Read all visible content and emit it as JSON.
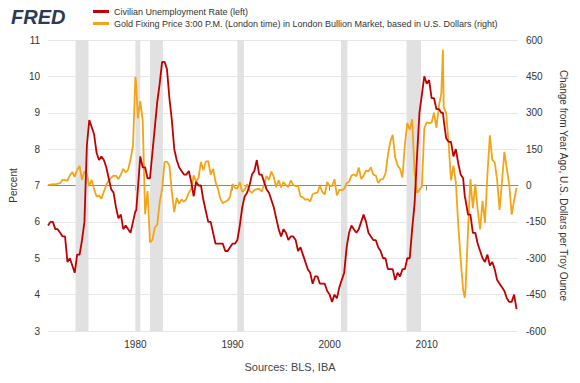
{
  "chart_data": {
    "type": "line",
    "title": "FRED",
    "source": "Sources: BLS, IBA",
    "ylabel": "Percent",
    "y2label": "Change from Year Ago, U.S. Dollars per Troy Ounce",
    "legend": "top-left",
    "grid": true,
    "xlim": [
      1971,
      2019.4
    ],
    "xticks": [
      1980,
      1990,
      2000,
      2010
    ],
    "ylim": [
      3,
      11
    ],
    "yticks": [
      3,
      4,
      5,
      6,
      7,
      8,
      9,
      10,
      11
    ],
    "y2lim": [
      -600,
      600
    ],
    "y2ticks": [
      -600,
      -450,
      -300,
      -150,
      0,
      150,
      300,
      450,
      600
    ],
    "shaded_periods": [
      [
        1973.83,
        1975.17
      ],
      [
        1980.0,
        1980.5
      ],
      [
        1981.5,
        1982.83
      ],
      [
        1990.5,
        1991.17
      ],
      [
        2001.17,
        2001.83
      ],
      [
        2007.92,
        2009.42
      ]
    ],
    "x": [
      1971,
      1971.25,
      1971.5,
      1971.75,
      1972,
      1972.25,
      1972.5,
      1972.75,
      1973,
      1973.25,
      1973.5,
      1973.75,
      1974,
      1974.25,
      1974.5,
      1974.75,
      1975,
      1975.25,
      1975.5,
      1975.75,
      1976,
      1976.25,
      1976.5,
      1976.75,
      1977,
      1977.25,
      1977.5,
      1977.75,
      1978,
      1978.25,
      1978.5,
      1978.75,
      1979,
      1979.25,
      1979.5,
      1979.75,
      1980,
      1980.08,
      1980.25,
      1980.5,
      1980.75,
      1981,
      1981.25,
      1981.5,
      1981.75,
      1982,
      1982.25,
      1982.5,
      1982.75,
      1983,
      1983.25,
      1983.5,
      1983.75,
      1984,
      1984.25,
      1984.5,
      1984.75,
      1985,
      1985.25,
      1985.5,
      1985.75,
      1986,
      1986.25,
      1986.5,
      1986.75,
      1987,
      1987.25,
      1987.5,
      1987.75,
      1988,
      1988.25,
      1988.5,
      1988.75,
      1989,
      1989.25,
      1989.5,
      1989.75,
      1990,
      1990.25,
      1990.5,
      1990.75,
      1991,
      1991.25,
      1991.5,
      1991.75,
      1992,
      1992.25,
      1992.5,
      1992.75,
      1993,
      1993.25,
      1993.5,
      1993.75,
      1994,
      1994.25,
      1994.5,
      1994.75,
      1995,
      1995.25,
      1995.5,
      1995.75,
      1996,
      1996.25,
      1996.5,
      1996.75,
      1997,
      1997.25,
      1997.5,
      1997.75,
      1998,
      1998.25,
      1998.5,
      1998.75,
      1999,
      1999.25,
      1999.5,
      1999.75,
      2000,
      2000.25,
      2000.5,
      2000.75,
      2001,
      2001.25,
      2001.5,
      2001.75,
      2002,
      2002.25,
      2002.5,
      2002.75,
      2003,
      2003.25,
      2003.5,
      2003.75,
      2004,
      2004.25,
      2004.5,
      2004.75,
      2005,
      2005.25,
      2005.5,
      2005.75,
      2006,
      2006.25,
      2006.5,
      2006.75,
      2007,
      2007.25,
      2007.5,
      2007.75,
      2008,
      2008.25,
      2008.5,
      2008.75,
      2009,
      2009.25,
      2009.5,
      2009.75,
      2010,
      2010.25,
      2010.5,
      2010.75,
      2011,
      2011.25,
      2011.5,
      2011.67,
      2011.75,
      2012,
      2012.25,
      2012.5,
      2012.75,
      2013,
      2013.25,
      2013.5,
      2013.75,
      2013.92,
      2014,
      2014.25,
      2014.5,
      2014.75,
      2015,
      2015.25,
      2015.5,
      2015.75,
      2016,
      2016.25,
      2016.5,
      2016.75,
      2017,
      2017.25,
      2017.5,
      2017.75,
      2018,
      2018.25,
      2018.5,
      2018.75,
      2019,
      2019.25
    ],
    "series": [
      {
        "name": "Civilian Unemployment Rate (left)",
        "color": "#c00000",
        "axis": "y",
        "values": [
          5.9,
          6.0,
          6.0,
          5.8,
          5.8,
          5.7,
          5.6,
          5.6,
          4.9,
          5.0,
          4.8,
          4.6,
          5.1,
          5.1,
          5.5,
          6.0,
          8.1,
          8.8,
          8.6,
          8.4,
          7.9,
          7.7,
          7.8,
          7.7,
          7.5,
          7.2,
          6.9,
          6.8,
          6.4,
          6.1,
          6.2,
          5.8,
          5.9,
          5.8,
          5.7,
          6.0,
          6.3,
          6.3,
          6.9,
          7.8,
          7.5,
          7.5,
          7.2,
          7.2,
          7.9,
          8.6,
          9.3,
          9.8,
          10.4,
          10.4,
          10.2,
          9.4,
          8.8,
          8.0,
          7.7,
          7.5,
          7.4,
          7.3,
          7.3,
          7.4,
          7.1,
          6.7,
          7.1,
          7.0,
          7.0,
          6.6,
          6.3,
          6.0,
          6.0,
          5.7,
          5.4,
          5.4,
          5.4,
          5.4,
          5.2,
          5.2,
          5.3,
          5.4,
          5.4,
          5.5,
          5.9,
          6.4,
          6.7,
          6.8,
          7.0,
          7.3,
          7.4,
          7.7,
          7.3,
          7.3,
          7.1,
          6.9,
          6.8,
          6.6,
          6.4,
          6.1,
          5.8,
          5.6,
          5.8,
          5.7,
          5.5,
          5.6,
          5.6,
          5.5,
          5.2,
          5.3,
          5.1,
          4.9,
          4.7,
          4.6,
          4.3,
          4.5,
          4.5,
          4.3,
          4.3,
          4.3,
          4.1,
          4.0,
          3.8,
          4.0,
          3.9,
          4.2,
          4.4,
          4.6,
          5.3,
          5.7,
          5.9,
          5.8,
          5.7,
          5.8,
          6.0,
          6.2,
          6.0,
          5.7,
          5.6,
          5.5,
          5.5,
          5.3,
          5.2,
          5.0,
          5.0,
          4.7,
          4.7,
          4.7,
          4.4,
          4.6,
          4.5,
          4.7,
          4.7,
          5.0,
          5.0,
          5.8,
          6.5,
          7.8,
          9.0,
          9.5,
          10.0,
          9.8,
          9.9,
          9.4,
          9.4,
          9.1,
          9.1,
          9.0,
          9.0,
          8.8,
          8.3,
          8.2,
          8.2,
          7.8,
          8.0,
          7.6,
          7.3,
          7.2,
          6.7,
          6.6,
          6.2,
          6.2,
          5.7,
          5.7,
          5.4,
          5.2,
          5.0,
          4.9,
          5.1,
          4.8,
          4.9,
          4.7,
          4.4,
          4.3,
          4.2,
          4.1,
          3.9,
          3.8,
          3.8,
          4.0,
          3.6
        ]
      },
      {
        "name": "Gold Fixing Price 3:00 P.M. (London time) in London Bullion Market, based in U.S. Dollars (right)",
        "color": "#f2a516",
        "axis": "y2",
        "values": [
          3,
          4,
          6,
          5,
          8,
          10,
          24,
          22,
          19,
          42,
          55,
          36,
          64,
          81,
          23,
          58,
          47,
          -2,
          23,
          -15,
          -45,
          -42,
          -54,
          -26,
          2,
          21,
          31,
          41,
          40,
          26,
          45,
          69,
          54,
          65,
          108,
          165,
          448,
          420,
          277,
          348,
          269,
          -118,
          -23,
          -235,
          -224,
          -173,
          -161,
          -69,
          -14,
          96,
          99,
          82,
          -26,
          -110,
          -51,
          -75,
          -57,
          -67,
          -56,
          -30,
          -14,
          42,
          15,
          32,
          97,
          63,
          98,
          101,
          45,
          69,
          14,
          -13,
          -55,
          -73,
          -67,
          -62,
          -46,
          6,
          -10,
          -13,
          13,
          -26,
          -18,
          6,
          -22,
          -30,
          -19,
          -15,
          -14,
          -25,
          4,
          39,
          23,
          58,
          35,
          -7,
          22,
          -8,
          14,
          1,
          -6,
          21,
          2,
          -3,
          -2,
          -45,
          -49,
          -59,
          -56,
          -66,
          -36,
          -31,
          -29,
          -2,
          -26,
          -37,
          15,
          -3,
          -2,
          26,
          -41,
          -18,
          -19,
          -14,
          9,
          16,
          41,
          46,
          38,
          74,
          27,
          40,
          62,
          58,
          75,
          44,
          42,
          10,
          25,
          26,
          49,
          125,
          181,
          209,
          116,
          82,
          69,
          33,
          168,
          258,
          230,
          273,
          53,
          -31,
          -18,
          -5,
          236,
          260,
          257,
          259,
          300,
          238,
          326,
          379,
          560,
          322,
          300,
          177,
          21,
          82,
          14,
          -165,
          -308,
          -431,
          -463,
          -426,
          -187,
          26,
          -94,
          6,
          -101,
          -181,
          -63,
          -153,
          44,
          207,
          107,
          95,
          24,
          -101,
          14,
          139,
          69,
          2,
          -120,
          -60,
          -10
        ]
      }
    ]
  }
}
